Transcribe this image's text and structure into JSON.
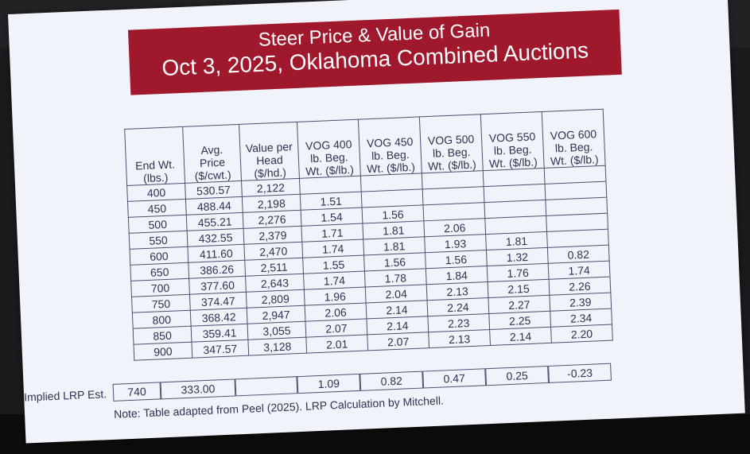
{
  "title": {
    "line1": "Steer Price & Value of Gain",
    "line2": "Oct 3, 2025, Oklahoma Combined Auctions"
  },
  "headers": [
    "End Wt. (lbs.)",
    "Avg. Price ($/cwt.)",
    "Value per Head ($/hd.)",
    "VOG 400 lb. Beg. Wt. ($/lb.)",
    "VOG 450 lb. Beg. Wt. ($/lb.)",
    "VOG 500 lb. Beg. Wt. ($/lb.)",
    "VOG 550 lb. Beg. Wt. ($/lb.)",
    "VOG 600 lb. Beg. Wt. ($/lb.)"
  ],
  "rows": [
    [
      "400",
      "530.57",
      "2,122",
      "",
      "",
      "",
      "",
      ""
    ],
    [
      "450",
      "488.44",
      "2,198",
      "1.51",
      "",
      "",
      "",
      ""
    ],
    [
      "500",
      "455.21",
      "2,276",
      "1.54",
      "1.56",
      "",
      "",
      ""
    ],
    [
      "550",
      "432.55",
      "2,379",
      "1.71",
      "1.81",
      "2.06",
      "",
      ""
    ],
    [
      "600",
      "411.60",
      "2,470",
      "1.74",
      "1.81",
      "1.93",
      "1.81",
      ""
    ],
    [
      "650",
      "386.26",
      "2,511",
      "1.55",
      "1.56",
      "1.56",
      "1.32",
      "0.82"
    ],
    [
      "700",
      "377.60",
      "2,643",
      "1.74",
      "1.78",
      "1.84",
      "1.76",
      "1.74"
    ],
    [
      "750",
      "374.47",
      "2,809",
      "1.96",
      "2.04",
      "2.13",
      "2.15",
      "2.26"
    ],
    [
      "800",
      "368.42",
      "2,947",
      "2.06",
      "2.14",
      "2.24",
      "2.27",
      "2.39"
    ],
    [
      "850",
      "359.41",
      "3,055",
      "2.07",
      "2.14",
      "2.23",
      "2.25",
      "2.34"
    ],
    [
      "900",
      "347.57",
      "3,128",
      "2.01",
      "2.07",
      "2.13",
      "2.14",
      "2.20"
    ]
  ],
  "lrp": {
    "label": "Implied LRP Est.",
    "values": [
      "740",
      "333.00",
      "",
      "1.09",
      "0.82",
      "0.47",
      "0.25",
      "-0.23"
    ]
  },
  "note": "Note: Table adapted from Peel (2025). LRP Calculation by Mitchell.",
  "colors": {
    "banner": "#a0182c",
    "screen": "#f1f3fb",
    "text": "#2d3352"
  }
}
